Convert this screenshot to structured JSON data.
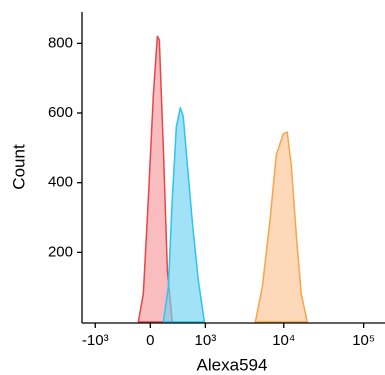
{
  "chart_data": {
    "type": "histogram-overlay",
    "x_label": "Alexa594",
    "y_label": "Count",
    "xscale": "asinh",
    "xlim": [
      -1500,
      185000
    ],
    "ylim": [
      0,
      890
    ],
    "xticks": [
      {
        "value": -1000,
        "label": "-10³"
      },
      0,
      {
        "value": 1000,
        "label": "10³"
      },
      {
        "value": 10000,
        "label": "10⁴"
      },
      {
        "value": 100000,
        "label": "10⁵"
      }
    ],
    "yticks": [
      200,
      400,
      600,
      800
    ],
    "series": [
      {
        "color": "#e8454a",
        "fill": "#f89a9c",
        "x": [
          -151,
          -87,
          -25,
          37,
          87,
          112,
          164,
          218,
          288
        ],
        "values": [
          0,
          80,
          350,
          650,
          820,
          810,
          500,
          150,
          0
        ]
      },
      {
        "color": "#2ec4ee",
        "fill": "#6fd3f2",
        "x": [
          164,
          232,
          288,
          351,
          417,
          469,
          549,
          658,
          798,
          969
        ],
        "values": [
          0,
          100,
          350,
          560,
          615,
          590,
          450,
          280,
          120,
          0
        ]
      },
      {
        "color": "#f7a54a",
        "fill": "#fcc593",
        "x": [
          4394,
          5380,
          6772,
          8053,
          9864,
          11059,
          12413,
          14347,
          16568,
          19685
        ],
        "values": [
          0,
          100,
          300,
          480,
          540,
          545,
          450,
          250,
          80,
          0
        ]
      }
    ]
  }
}
